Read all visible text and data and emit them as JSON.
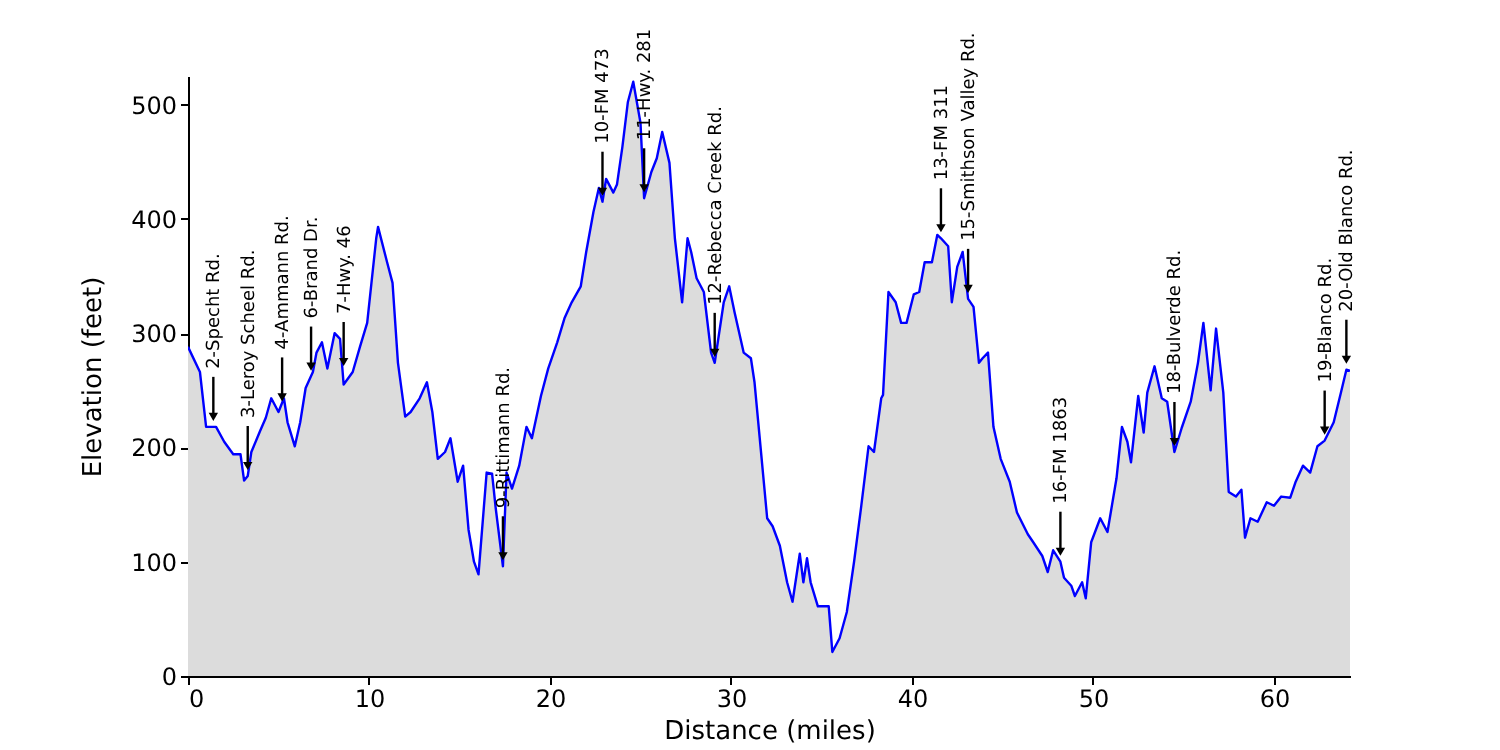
{
  "chart_data": {
    "type": "line",
    "xlabel": "Distance (miles)",
    "ylabel": "Elevation (feet)",
    "xlim": [
      0,
      64.2
    ],
    "ylim": [
      0,
      525
    ],
    "xticks": [
      0,
      10,
      20,
      30,
      40,
      50,
      60
    ],
    "yticks": [
      0,
      100,
      200,
      300,
      400,
      500
    ],
    "grid": false,
    "legend": false,
    "marker": "none",
    "line_style": "solid",
    "x": [
      0,
      0.66,
      1.0,
      1.55,
      2.0,
      2.5,
      2.9,
      3.1,
      3.3,
      3.5,
      4.0,
      4.3,
      4.6,
      5.0,
      5.3,
      5.5,
      5.9,
      6.2,
      6.5,
      6.9,
      7.1,
      7.4,
      7.7,
      8.1,
      8.4,
      8.6,
      9.1,
      9.5,
      9.9,
      10.4,
      10.5,
      11.0,
      11.3,
      11.6,
      12.0,
      12.3,
      12.8,
      13.2,
      13.5,
      13.8,
      14.2,
      14.5,
      14.9,
      15.2,
      15.5,
      15.8,
      16.05,
      16.5,
      16.8,
      17.0,
      17.4,
      17.6,
      17.9,
      18.3,
      18.7,
      19.0,
      19.5,
      19.9,
      20.4,
      20.8,
      21.2,
      21.7,
      22.0,
      22.4,
      22.7,
      22.9,
      23.1,
      23.5,
      23.7,
      24.0,
      24.3,
      24.6,
      25.0,
      25.2,
      25.6,
      25.9,
      26.2,
      26.6,
      26.9,
      27.3,
      27.6,
      27.8,
      28.1,
      28.5,
      28.9,
      29.1,
      29.6,
      29.9,
      30.2,
      30.7,
      31.1,
      31.3,
      32.0,
      32.3,
      32.7,
      33.1,
      33.4,
      33.8,
      34.0,
      34.2,
      34.4,
      34.8,
      35.1,
      35.4,
      35.6,
      36.0,
      36.4,
      36.8,
      37.2,
      37.6,
      37.9,
      38.3,
      38.4,
      38.7,
      39.1,
      39.4,
      39.7,
      40.1,
      40.4,
      40.7,
      41.1,
      41.4,
      41.6,
      42.0,
      42.2,
      42.5,
      42.8,
      43.1,
      43.4,
      43.7,
      43.9,
      44.2,
      44.5,
      44.9,
      45.4,
      45.8,
      46.4,
      46.7,
      47.2,
      47.5,
      47.8,
      48.2,
      48.4,
      48.8,
      49.0,
      49.4,
      49.6,
      49.9,
      50.4,
      50.8,
      51.3,
      51.6,
      51.9,
      52.1,
      52.5,
      52.8,
      53.0,
      53.4,
      53.8,
      54.1,
      54.5,
      54.9,
      55.4,
      55.8,
      56.1,
      56.5,
      56.8,
      57.2,
      57.5,
      57.9,
      58.2,
      58.4,
      58.7,
      59.1,
      59.6,
      60.0,
      60.4,
      60.9,
      61.2,
      61.6,
      62.0,
      62.4,
      62.8,
      63.3,
      63.7,
      64.0,
      64.2
    ],
    "series": [
      {
        "type": "area",
        "color": "#0000ff",
        "values": [
          288,
          266,
          218,
          218,
          205,
          194,
          194,
          171,
          175,
          196,
          215,
          226,
          243,
          231,
          243,
          222,
          201,
          222,
          252,
          266,
          283,
          292,
          269,
          300,
          295,
          255,
          266,
          288,
          309,
          383,
          393,
          362,
          344,
          274,
          227,
          231,
          243,
          257,
          231,
          190,
          196,
          208,
          170,
          184,
          128,
          100,
          89,
          178,
          177,
          147,
          96,
          178,
          164,
          184,
          218,
          208,
          245,
          269,
          292,
          313,
          327,
          341,
          371,
          406,
          427,
          415,
          435,
          423,
          430,
          463,
          502,
          520,
          484,
          418,
          441,
          453,
          476,
          449,
          383,
          327,
          383,
          371,
          348,
          336,
          283,
          274,
          327,
          341,
          318,
          283,
          278,
          257,
          138,
          131,
          114,
          82,
          65,
          107,
          82,
          103,
          82,
          61,
          61,
          61,
          21,
          33,
          56,
          100,
          149,
          201,
          196,
          243,
          246,
          336,
          327,
          309,
          309,
          334,
          336,
          362,
          362,
          386,
          383,
          376,
          327,
          358,
          371,
          330,
          323,
          274,
          278,
          283,
          218,
          190,
          170,
          143,
          124,
          117,
          105,
          91,
          110,
          100,
          86,
          79,
          70,
          82,
          68,
          117,
          138,
          126,
          173,
          218,
          205,
          187,
          245,
          213,
          248,
          271,
          243,
          240,
          196,
          217,
          240,
          274,
          309,
          250,
          304,
          248,
          161,
          157,
          163,
          121,
          138,
          135,
          152,
          149,
          157,
          156,
          170,
          184,
          178,
          201,
          206,
          222,
          248,
          268,
          267
        ]
      }
    ],
    "annotations": [
      {
        "text": "2-Specht Rd.",
        "x": 1.4,
        "y": 218
      },
      {
        "text": "3-Leroy Scheel Rd.",
        "x": 3.3,
        "y": 175
      },
      {
        "text": "4-Ammann Rd.",
        "x": 5.2,
        "y": 235
      },
      {
        "text": "6-Brand Dr.",
        "x": 6.8,
        "y": 262
      },
      {
        "text": "7-Hwy. 46",
        "x": 8.6,
        "y": 266
      },
      {
        "text": "9-Rittimann Rd.",
        "x": 17.4,
        "y": 96
      },
      {
        "text": "10-FM 473",
        "x": 22.9,
        "y": 415
      },
      {
        "text": "11-Hwy. 281",
        "x": 25.2,
        "y": 418
      },
      {
        "text": "12-Rebecca Creek Rd.",
        "x": 29.1,
        "y": 274
      },
      {
        "text": "13-FM 311",
        "x": 41.6,
        "y": 383
      },
      {
        "text": "15-Smithson Valley Rd.",
        "x": 43.1,
        "y": 330
      },
      {
        "text": "16-FM 1863",
        "x": 48.2,
        "y": 100
      },
      {
        "text": "18-Bulverde Rd.",
        "x": 54.5,
        "y": 196
      },
      {
        "text": "19-Blanco Rd.",
        "x": 62.8,
        "y": 206
      },
      {
        "text": "20-Old Blanco Rd.",
        "x": 64.0,
        "y": 268
      }
    ]
  }
}
